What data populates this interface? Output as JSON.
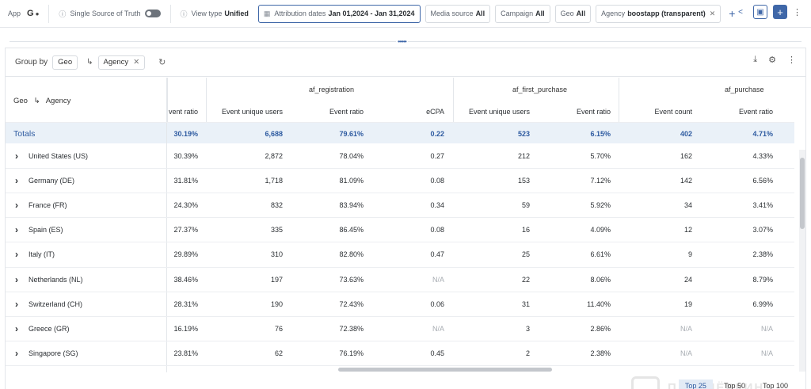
{
  "topbar": {
    "app_label": "App",
    "ssot_label": "Single Source of Truth",
    "view_type_label": "View type",
    "view_type_value": "Unified",
    "attribution_label": "Attribution dates",
    "attribution_value": "Jan 01,2024 - Jan 31,2024",
    "media_source_label": "Media source",
    "media_source_value": "All",
    "campaign_label": "Campaign",
    "campaign_value": "All",
    "geo_label": "Geo",
    "geo_value": "All",
    "agency_label": "Agency",
    "agency_value": "boostapp (transparent)"
  },
  "groupbar": {
    "label": "Group by",
    "items": [
      "Geo",
      "Agency"
    ]
  },
  "table": {
    "frozen_header": "Geo",
    "frozen_header_sub": "Agency",
    "groups": [
      "af_registration",
      "af_first_purchase",
      "af_purchase"
    ],
    "columns": [
      "vent ratio",
      "Event unique users",
      "Event ratio",
      "eCPA",
      "Event unique users",
      "Event ratio",
      "Event count",
      "Event ratio"
    ],
    "totals": {
      "label": "Totals",
      "values": [
        "30.19%",
        "6,688",
        "79.61%",
        "0.22",
        "523",
        "6.15%",
        "402",
        "4.71%"
      ]
    },
    "rows": [
      {
        "geo": "United States (US)",
        "values": [
          "30.39%",
          "2,872",
          "78.04%",
          "0.27",
          "212",
          "5.70%",
          "162",
          "4.33%"
        ]
      },
      {
        "geo": "Germany (DE)",
        "values": [
          "31.81%",
          "1,718",
          "81.09%",
          "0.08",
          "153",
          "7.12%",
          "142",
          "6.56%"
        ]
      },
      {
        "geo": "France (FR)",
        "values": [
          "24.30%",
          "832",
          "83.94%",
          "0.34",
          "59",
          "5.92%",
          "34",
          "3.41%"
        ]
      },
      {
        "geo": "Spain (ES)",
        "values": [
          "27.37%",
          "335",
          "86.45%",
          "0.08",
          "16",
          "4.09%",
          "12",
          "3.07%"
        ]
      },
      {
        "geo": "Italy (IT)",
        "values": [
          "29.89%",
          "310",
          "82.80%",
          "0.47",
          "25",
          "6.61%",
          "9",
          "2.38%"
        ]
      },
      {
        "geo": "Netherlands (NL)",
        "values": [
          "38.46%",
          "197",
          "73.63%",
          "N/A",
          "22",
          "8.06%",
          "24",
          "8.79%"
        ]
      },
      {
        "geo": "Switzerland (CH)",
        "values": [
          "28.31%",
          "190",
          "72.43%",
          "0.06",
          "31",
          "11.40%",
          "19",
          "6.99%"
        ]
      },
      {
        "geo": "Greece (GR)",
        "values": [
          "16.19%",
          "76",
          "72.38%",
          "N/A",
          "3",
          "2.86%",
          "N/A",
          "N/A"
        ]
      },
      {
        "geo": "Singapore (SG)",
        "values": [
          "23.81%",
          "62",
          "76.19%",
          "0.45",
          "2",
          "2.38%",
          "N/A",
          "N/A"
        ]
      }
    ]
  },
  "pager": [
    "Top 25",
    "Top 50",
    "Top 100"
  ],
  "watermark": "ПАРТНЁРКИН",
  "colors": {
    "accent": "#3f67a8",
    "totals_bg": "#eaf1f8",
    "totals_text": "#2d5aa0"
  },
  "icons": [
    "google-play-icon",
    "apple-icon",
    "question-icon",
    "calendar-icon",
    "share-icon",
    "save-icon",
    "add-icon",
    "more-icon",
    "history-icon",
    "download-icon",
    "settings-icon",
    "expand-chevron-icon"
  ]
}
